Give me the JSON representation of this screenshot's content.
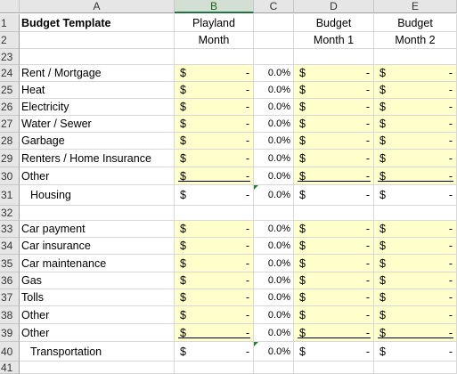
{
  "columns": [
    "A",
    "B",
    "C",
    "D",
    "E"
  ],
  "selected_column": "B",
  "row1": {
    "num": "1",
    "title": "Budget Template",
    "b": "Playland",
    "d": "Budget",
    "e": "Budget"
  },
  "row2": {
    "num": "2",
    "b": "Month",
    "d": "Month 1",
    "e": "Month 2"
  },
  "row23": {
    "num": "23"
  },
  "housing": [
    {
      "num": "24",
      "label": "Rent / Mortgage"
    },
    {
      "num": "25",
      "label": "Heat"
    },
    {
      "num": "26",
      "label": "Electricity"
    },
    {
      "num": "27",
      "label": "Water / Sewer"
    },
    {
      "num": "28",
      "label": "Garbage"
    },
    {
      "num": "29",
      "label": "Renters / Home Insurance"
    },
    {
      "num": "30",
      "label": "Other"
    }
  ],
  "housing_total": {
    "num": "31",
    "label": "Housing"
  },
  "row32": {
    "num": "32"
  },
  "transport": [
    {
      "num": "33",
      "label": "Car payment"
    },
    {
      "num": "34",
      "label": "Car insurance"
    },
    {
      "num": "35",
      "label": "Car maintenance"
    },
    {
      "num": "36",
      "label": "Gas"
    },
    {
      "num": "37",
      "label": "Tolls"
    },
    {
      "num": "38",
      "label": "Other"
    },
    {
      "num": "39",
      "label": "Other"
    }
  ],
  "transport_total": {
    "num": "40",
    "label": "Transportation"
  },
  "row41": {
    "num": "41"
  },
  "cell_values": {
    "dollar": "$",
    "dash": "-",
    "pct": "0.0%"
  }
}
